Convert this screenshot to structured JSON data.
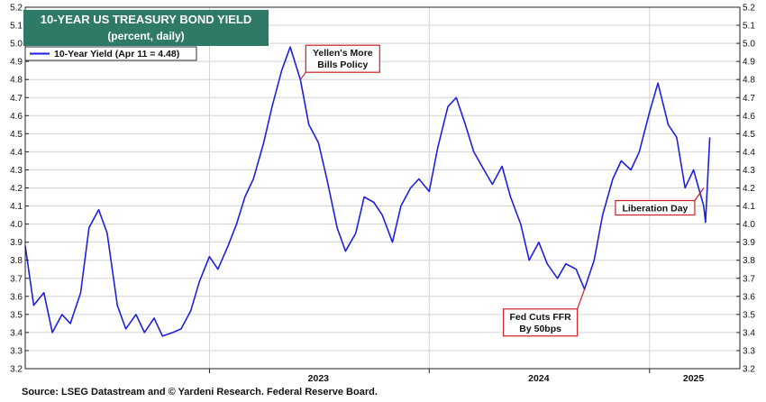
{
  "chart_data": {
    "type": "line",
    "title": "10-YEAR US TREASURY BOND YIELD",
    "subtitle": "(percent, daily)",
    "ylim": [
      3.2,
      5.2
    ],
    "y_ticks": [
      "3.2",
      "3.3",
      "3.4",
      "3.5",
      "3.6",
      "3.7",
      "3.8",
      "3.9",
      "4.0",
      "4.1",
      "4.2",
      "4.3",
      "4.4",
      "4.5",
      "4.6",
      "4.7",
      "4.8",
      "4.9",
      "5.0",
      "5.1",
      "5.2"
    ],
    "x_tick_labels": [
      {
        "x": "2023-07-01",
        "label": "2023"
      },
      {
        "x": "2024-07-01",
        "label": "2024"
      },
      {
        "x": "2025-03-15",
        "label": "2025"
      }
    ],
    "x_boundaries": [
      "2023-01-01",
      "2024-01-01",
      "2025-01-01"
    ],
    "xlim": [
      "2022-03-01",
      "2025-05-31"
    ],
    "grid": true,
    "legend_position": "top-left",
    "series": [
      {
        "name": "10-Year Yield (Apr 11 = 4.48)",
        "color": "#1f1fe0",
        "points": [
          [
            "2022-03-01",
            3.88
          ],
          [
            "2022-03-15",
            3.55
          ],
          [
            "2022-04-01",
            3.62
          ],
          [
            "2022-04-15",
            3.4
          ],
          [
            "2022-05-01",
            3.5
          ],
          [
            "2022-05-15",
            3.45
          ],
          [
            "2022-06-01",
            3.62
          ],
          [
            "2022-06-15",
            3.98
          ],
          [
            "2022-07-01",
            4.08
          ],
          [
            "2022-07-15",
            3.95
          ],
          [
            "2022-08-01",
            3.55
          ],
          [
            "2022-08-15",
            3.42
          ],
          [
            "2022-09-01",
            3.5
          ],
          [
            "2022-09-15",
            3.4
          ],
          [
            "2022-10-01",
            3.48
          ],
          [
            "2022-10-15",
            3.38
          ],
          [
            "2022-11-01",
            3.4
          ],
          [
            "2022-11-15",
            3.42
          ],
          [
            "2022-12-01",
            3.52
          ],
          [
            "2022-12-15",
            3.68
          ],
          [
            "2023-01-01",
            3.82
          ],
          [
            "2023-01-15",
            3.75
          ],
          [
            "2023-02-01",
            3.88
          ],
          [
            "2023-02-15",
            4.0
          ],
          [
            "2023-03-01",
            4.15
          ],
          [
            "2023-03-15",
            4.25
          ],
          [
            "2023-04-01",
            4.45
          ],
          [
            "2023-04-15",
            4.65
          ],
          [
            "2023-05-01",
            4.85
          ],
          [
            "2023-05-15",
            4.98
          ],
          [
            "2023-06-01",
            4.8
          ],
          [
            "2023-06-15",
            4.55
          ],
          [
            "2023-07-01",
            4.45
          ],
          [
            "2023-07-15",
            4.25
          ],
          [
            "2023-08-01",
            3.98
          ],
          [
            "2023-08-15",
            3.85
          ],
          [
            "2023-09-01",
            3.95
          ],
          [
            "2023-09-15",
            4.15
          ],
          [
            "2023-10-01",
            4.12
          ],
          [
            "2023-10-15",
            4.05
          ],
          [
            "2023-11-01",
            3.9
          ],
          [
            "2023-11-15",
            4.1
          ],
          [
            "2023-12-01",
            4.2
          ],
          [
            "2023-12-15",
            4.25
          ],
          [
            "2024-01-01",
            4.18
          ],
          [
            "2024-01-15",
            4.42
          ],
          [
            "2024-02-01",
            4.65
          ],
          [
            "2024-02-15",
            4.7
          ],
          [
            "2024-03-01",
            4.55
          ],
          [
            "2024-03-15",
            4.4
          ],
          [
            "2024-04-01",
            4.3
          ],
          [
            "2024-04-15",
            4.22
          ],
          [
            "2024-05-01",
            4.32
          ],
          [
            "2024-05-15",
            4.15
          ],
          [
            "2024-06-01",
            4.0
          ],
          [
            "2024-06-15",
            3.8
          ],
          [
            "2024-07-01",
            3.9
          ],
          [
            "2024-07-15",
            3.78
          ],
          [
            "2024-08-01",
            3.7
          ],
          [
            "2024-08-15",
            3.78
          ],
          [
            "2024-09-01",
            3.75
          ],
          [
            "2024-09-15",
            3.64
          ],
          [
            "2024-10-01",
            3.8
          ],
          [
            "2024-10-15",
            4.05
          ],
          [
            "2024-11-01",
            4.25
          ],
          [
            "2024-11-15",
            4.35
          ],
          [
            "2024-12-01",
            4.3
          ],
          [
            "2024-12-15",
            4.4
          ],
          [
            "2025-01-01",
            4.62
          ],
          [
            "2025-01-15",
            4.78
          ],
          [
            "2025-02-01",
            4.55
          ],
          [
            "2025-02-15",
            4.48
          ],
          [
            "2025-03-01",
            4.2
          ],
          [
            "2025-03-15",
            4.3
          ],
          [
            "2025-04-01",
            4.1
          ],
          [
            "2025-04-04",
            4.01
          ],
          [
            "2025-04-11",
            4.48
          ]
        ]
      }
    ],
    "annotations": [
      {
        "text": [
          "Yellen's More",
          "Bills Policy"
        ],
        "date": "2023-06-01",
        "value": 4.8
      },
      {
        "text": [
          "Fed Cuts FFR",
          "By 50bps"
        ],
        "date": "2024-09-15",
        "value": 3.64
      },
      {
        "text": [
          "Liberation Day"
        ],
        "date": "2025-04-01",
        "value": 4.2
      }
    ]
  },
  "footer": {
    "source": "Source: LSEG Datastream and © Yardeni Research. Federal Reserve Board."
  }
}
